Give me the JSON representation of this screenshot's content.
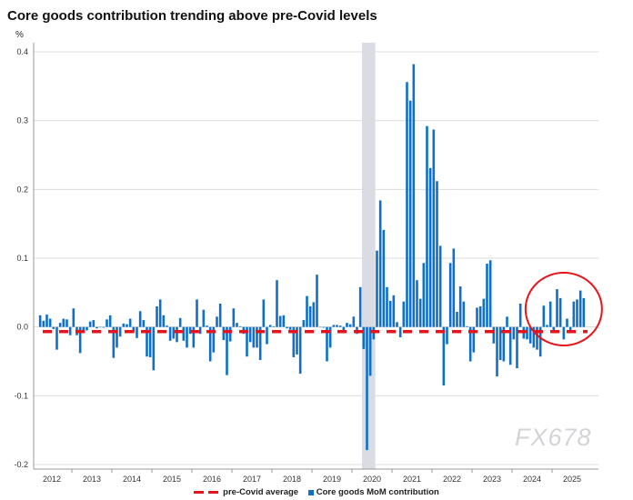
{
  "title": "Core goods contribution trending above pre-Covid levels",
  "watermark": "FX678",
  "colors": {
    "bars": "#1070c8",
    "average": "#e8141b",
    "shading": "#d9dce3",
    "circle": "#e8141b"
  },
  "chart_data": {
    "type": "bar",
    "title": "Core goods contribution trending above pre-Covid levels",
    "ylabel": "%",
    "xlabel": "",
    "ylim": [
      -0.2,
      0.4
    ],
    "yticks": [
      "0.4",
      "0.3",
      "0.2",
      "0.1",
      "0.0",
      "-0.1",
      "-0.2"
    ],
    "xtick_labels": [
      "2012",
      "2013",
      "2014",
      "2015",
      "2016",
      "2017",
      "2018",
      "2019",
      "2020",
      "2021",
      "2022",
      "2023",
      "2024",
      "2025"
    ],
    "grid": true,
    "legend_position": "bottom",
    "legend": [
      "pre-Covid average",
      "Core goods MoM contribution"
    ],
    "shaded_period": [
      "2020-04",
      "2020-07"
    ],
    "highlight_circle": [
      "2024-10",
      "2025-10"
    ],
    "reference_line": {
      "name": "pre-Covid average",
      "value": -0.004
    },
    "series": [
      {
        "name": "Core goods MoM contribution",
        "start": "2012-03",
        "values": [
          0.017,
          0.009,
          0.018,
          0.012,
          -0.003,
          -0.033,
          0.006,
          0.012,
          0.011,
          -0.012,
          0.027,
          -0.012,
          -0.038,
          -0.008,
          -0.005,
          0.008,
          0.01,
          -0.002,
          0.0,
          -0.001,
          0.011,
          0.017,
          -0.045,
          -0.03,
          -0.014,
          0.005,
          0.004,
          0.012,
          -0.008,
          -0.016,
          0.023,
          0.01,
          -0.043,
          -0.044,
          -0.063,
          0.03,
          0.04,
          0.017,
          0.002,
          -0.02,
          -0.017,
          -0.022,
          0.013,
          -0.02,
          -0.03,
          -0.01,
          -0.03,
          0.04,
          -0.01,
          0.025,
          0.002,
          -0.05,
          -0.037,
          0.015,
          0.034,
          -0.019,
          -0.07,
          -0.021,
          0.027,
          0.006,
          0.001,
          -0.01,
          -0.043,
          -0.022,
          -0.03,
          -0.03,
          -0.048,
          0.04,
          -0.025,
          0.003,
          0.001,
          0.068,
          0.016,
          0.017,
          -0.002,
          -0.004,
          -0.044,
          -0.04,
          -0.068,
          0.01,
          0.045,
          0.03,
          0.036,
          0.076,
          0.0,
          -0.001,
          -0.05,
          -0.03,
          0.003,
          0.003,
          0.002,
          -0.006,
          0.006,
          0.004,
          0.015,
          -0.01,
          0.058,
          -0.032,
          -0.179,
          -0.071,
          -0.018,
          0.111,
          0.184,
          0.141,
          0.058,
          0.038,
          0.046,
          0.007,
          -0.015,
          0.037,
          0.356,
          0.329,
          0.382,
          0.068,
          0.041,
          0.093,
          0.292,
          0.231,
          0.287,
          0.212,
          0.118,
          -0.085,
          -0.025,
          0.093,
          0.114,
          0.022,
          0.059,
          0.037,
          0.001,
          -0.05,
          -0.037,
          0.028,
          0.03,
          0.041,
          0.092,
          0.097,
          -0.024,
          -0.072,
          -0.048,
          -0.05,
          0.015,
          -0.055,
          -0.018,
          -0.06,
          0.034,
          -0.017,
          -0.018,
          -0.024,
          -0.03,
          -0.033,
          -0.043,
          0.031,
          0.003,
          0.037,
          -0.006,
          0.055,
          0.042,
          -0.018,
          0.012,
          -0.007,
          0.037,
          0.04,
          0.053,
          0.042
        ]
      }
    ]
  }
}
